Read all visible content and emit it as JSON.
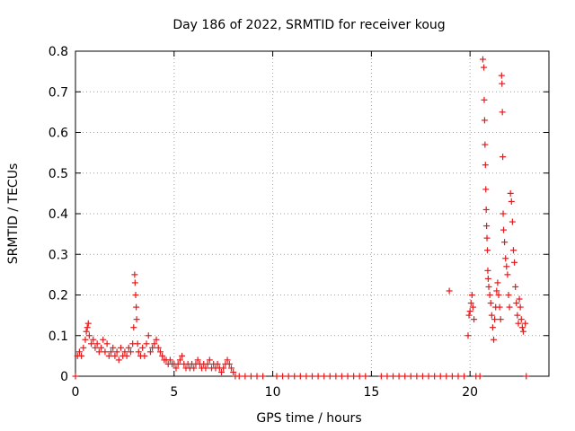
{
  "chart_data": {
    "type": "scatter",
    "title": "Day 186 of 2022, SRMTID for receiver koug",
    "xlabel": "GPS time / hours",
    "ylabel": "SRMTID / TECUs",
    "xlim": [
      0,
      24
    ],
    "ylim": [
      0,
      0.8
    ],
    "xticks": [
      0,
      5,
      10,
      15,
      20
    ],
    "yticks": [
      0,
      0.1,
      0.2,
      0.3,
      0.4,
      0.5,
      0.6,
      0.7,
      0.8
    ],
    "grid": true,
    "marker": "plus",
    "series": [
      {
        "name": "SRMTID",
        "color": "#e41a1c",
        "points": [
          [
            0.0,
            0.0
          ],
          [
            0.1,
            0.05
          ],
          [
            0.2,
            0.06
          ],
          [
            0.3,
            0.05
          ],
          [
            0.4,
            0.07
          ],
          [
            0.5,
            0.09
          ],
          [
            0.55,
            0.11
          ],
          [
            0.6,
            0.12
          ],
          [
            0.65,
            0.13
          ],
          [
            0.7,
            0.1
          ],
          [
            0.8,
            0.08
          ],
          [
            0.9,
            0.09
          ],
          [
            1.0,
            0.07
          ],
          [
            1.1,
            0.08
          ],
          [
            1.2,
            0.06
          ],
          [
            1.3,
            0.07
          ],
          [
            1.4,
            0.09
          ],
          [
            1.5,
            0.06
          ],
          [
            1.6,
            0.08
          ],
          [
            1.7,
            0.05
          ],
          [
            1.8,
            0.06
          ],
          [
            1.9,
            0.07
          ],
          [
            2.0,
            0.05
          ],
          [
            2.1,
            0.06
          ],
          [
            2.2,
            0.04
          ],
          [
            2.3,
            0.07
          ],
          [
            2.4,
            0.05
          ],
          [
            2.5,
            0.06
          ],
          [
            2.6,
            0.05
          ],
          [
            2.7,
            0.07
          ],
          [
            2.8,
            0.06
          ],
          [
            2.9,
            0.08
          ],
          [
            2.95,
            0.12
          ],
          [
            3.0,
            0.25
          ],
          [
            3.02,
            0.23
          ],
          [
            3.05,
            0.2
          ],
          [
            3.08,
            0.17
          ],
          [
            3.1,
            0.14
          ],
          [
            3.15,
            0.08
          ],
          [
            3.2,
            0.06
          ],
          [
            3.3,
            0.05
          ],
          [
            3.4,
            0.07
          ],
          [
            3.5,
            0.05
          ],
          [
            3.6,
            0.08
          ],
          [
            3.7,
            0.1
          ],
          [
            3.8,
            0.06
          ],
          [
            3.9,
            0.07
          ],
          [
            4.0,
            0.08
          ],
          [
            4.1,
            0.09
          ],
          [
            4.2,
            0.07
          ],
          [
            4.3,
            0.06
          ],
          [
            4.4,
            0.05
          ],
          [
            4.5,
            0.04
          ],
          [
            4.6,
            0.04
          ],
          [
            4.7,
            0.03
          ],
          [
            4.8,
            0.04
          ],
          [
            4.9,
            0.03
          ],
          [
            5.0,
            0.03
          ],
          [
            5.1,
            0.02
          ],
          [
            5.2,
            0.03
          ],
          [
            5.3,
            0.04
          ],
          [
            5.4,
            0.05
          ],
          [
            5.5,
            0.03
          ],
          [
            5.6,
            0.02
          ],
          [
            5.7,
            0.03
          ],
          [
            5.8,
            0.02
          ],
          [
            5.9,
            0.03
          ],
          [
            6.0,
            0.02
          ],
          [
            6.1,
            0.03
          ],
          [
            6.2,
            0.04
          ],
          [
            6.3,
            0.03
          ],
          [
            6.4,
            0.02
          ],
          [
            6.5,
            0.03
          ],
          [
            6.6,
            0.02
          ],
          [
            6.7,
            0.03
          ],
          [
            6.8,
            0.04
          ],
          [
            6.9,
            0.02
          ],
          [
            7.0,
            0.03
          ],
          [
            7.1,
            0.02
          ],
          [
            7.2,
            0.03
          ],
          [
            7.3,
            0.02
          ],
          [
            7.4,
            0.01
          ],
          [
            7.5,
            0.02
          ],
          [
            7.6,
            0.03
          ],
          [
            7.7,
            0.04
          ],
          [
            7.8,
            0.03
          ],
          [
            7.9,
            0.02
          ],
          [
            8.0,
            0.01
          ],
          [
            8.1,
            0.0
          ],
          [
            8.3,
            0.0
          ],
          [
            8.6,
            0.0
          ],
          [
            8.9,
            0.0
          ],
          [
            9.2,
            0.0
          ],
          [
            9.5,
            0.0
          ],
          [
            10.2,
            0.0
          ],
          [
            10.5,
            0.0
          ],
          [
            10.8,
            0.0
          ],
          [
            11.1,
            0.0
          ],
          [
            11.4,
            0.0
          ],
          [
            11.7,
            0.0
          ],
          [
            12.0,
            0.0
          ],
          [
            12.3,
            0.0
          ],
          [
            12.6,
            0.0
          ],
          [
            12.9,
            0.0
          ],
          [
            13.2,
            0.0
          ],
          [
            13.5,
            0.0
          ],
          [
            13.8,
            0.0
          ],
          [
            14.1,
            0.0
          ],
          [
            14.4,
            0.0
          ],
          [
            14.7,
            0.0
          ],
          [
            15.5,
            0.0
          ],
          [
            15.8,
            0.0
          ],
          [
            16.1,
            0.0
          ],
          [
            16.4,
            0.0
          ],
          [
            16.7,
            0.0
          ],
          [
            17.0,
            0.0
          ],
          [
            17.3,
            0.0
          ],
          [
            17.6,
            0.0
          ],
          [
            17.9,
            0.0
          ],
          [
            18.2,
            0.0
          ],
          [
            18.5,
            0.0
          ],
          [
            18.8,
            0.0
          ],
          [
            18.95,
            0.21
          ],
          [
            19.1,
            0.0
          ],
          [
            19.4,
            0.0
          ],
          [
            19.7,
            0.0
          ],
          [
            19.9,
            0.1
          ],
          [
            19.95,
            0.15
          ],
          [
            20.0,
            0.16
          ],
          [
            20.05,
            0.18
          ],
          [
            20.1,
            0.2
          ],
          [
            20.15,
            0.17
          ],
          [
            20.2,
            0.14
          ],
          [
            20.3,
            0.0
          ],
          [
            20.5,
            0.0
          ],
          [
            20.65,
            0.78
          ],
          [
            20.7,
            0.76
          ],
          [
            20.72,
            0.68
          ],
          [
            20.74,
            0.63
          ],
          [
            20.76,
            0.57
          ],
          [
            20.78,
            0.52
          ],
          [
            20.8,
            0.46
          ],
          [
            20.82,
            0.41
          ],
          [
            20.84,
            0.37
          ],
          [
            20.86,
            0.34
          ],
          [
            20.88,
            0.31
          ],
          [
            20.9,
            0.26
          ],
          [
            20.92,
            0.24
          ],
          [
            20.95,
            0.22
          ],
          [
            21.0,
            0.2
          ],
          [
            21.05,
            0.18
          ],
          [
            21.1,
            0.15
          ],
          [
            21.15,
            0.12
          ],
          [
            21.2,
            0.09
          ],
          [
            21.25,
            0.14
          ],
          [
            21.3,
            0.17
          ],
          [
            21.35,
            0.21
          ],
          [
            21.4,
            0.23
          ],
          [
            21.45,
            0.2
          ],
          [
            21.5,
            0.17
          ],
          [
            21.55,
            0.14
          ],
          [
            21.6,
            0.74
          ],
          [
            21.62,
            0.72
          ],
          [
            21.64,
            0.65
          ],
          [
            21.66,
            0.54
          ],
          [
            21.68,
            0.4
          ],
          [
            21.7,
            0.36
          ],
          [
            21.75,
            0.33
          ],
          [
            21.8,
            0.29
          ],
          [
            21.85,
            0.27
          ],
          [
            21.9,
            0.25
          ],
          [
            21.95,
            0.2
          ],
          [
            22.0,
            0.17
          ],
          [
            22.05,
            0.45
          ],
          [
            22.1,
            0.43
          ],
          [
            22.15,
            0.38
          ],
          [
            22.2,
            0.31
          ],
          [
            22.25,
            0.28
          ],
          [
            22.3,
            0.22
          ],
          [
            22.35,
            0.18
          ],
          [
            22.4,
            0.15
          ],
          [
            22.45,
            0.13
          ],
          [
            22.5,
            0.19
          ],
          [
            22.55,
            0.17
          ],
          [
            22.6,
            0.14
          ],
          [
            22.65,
            0.12
          ],
          [
            22.7,
            0.11
          ],
          [
            22.8,
            0.13
          ],
          [
            22.85,
            0.0
          ]
        ]
      }
    ]
  }
}
